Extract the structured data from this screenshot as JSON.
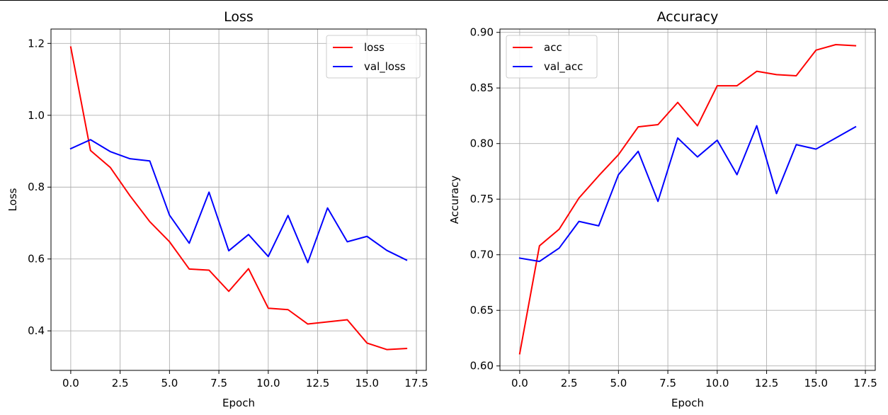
{
  "chart_data": [
    {
      "type": "line",
      "title": "Loss",
      "xlabel": "Epoch",
      "ylabel": "Loss",
      "xlim": [
        -1.0,
        18.0
      ],
      "ylim": [
        0.29,
        1.24
      ],
      "x_ticks": [
        0.0,
        2.5,
        5.0,
        7.5,
        10.0,
        12.5,
        15.0,
        17.5
      ],
      "x_tick_labels": [
        "0.0",
        "2.5",
        "5.0",
        "7.5",
        "10.0",
        "12.5",
        "15.0",
        "17.5"
      ],
      "y_ticks": [
        0.4,
        0.6,
        0.8,
        1.0,
        1.2
      ],
      "y_tick_labels": [
        "0.4",
        "0.6",
        "0.8",
        "1.0",
        "1.2"
      ],
      "grid": true,
      "legend_position": "upper right",
      "x": [
        0,
        1,
        2,
        3,
        4,
        5,
        6,
        7,
        8,
        9,
        10,
        11,
        12,
        13,
        14,
        15,
        16,
        17
      ],
      "series": [
        {
          "name": "loss",
          "color": "#ff0000",
          "values": [
            1.19,
            0.902,
            0.855,
            0.776,
            0.704,
            0.648,
            0.572,
            0.569,
            0.51,
            0.573,
            0.463,
            0.459,
            0.419,
            0.425,
            0.431,
            0.366,
            0.348,
            0.351
          ]
        },
        {
          "name": "val_loss",
          "color": "#0000ff",
          "values": [
            0.907,
            0.932,
            0.899,
            0.879,
            0.873,
            0.722,
            0.644,
            0.786,
            0.623,
            0.668,
            0.607,
            0.721,
            0.59,
            0.742,
            0.648,
            0.663,
            0.624,
            0.597
          ]
        }
      ]
    },
    {
      "type": "line",
      "title": "Accuracy",
      "xlabel": "Epoch",
      "ylabel": "Accuracy",
      "xlim": [
        -1.0,
        18.0
      ],
      "ylim": [
        0.596,
        0.903
      ],
      "x_ticks": [
        0.0,
        2.5,
        5.0,
        7.5,
        10.0,
        12.5,
        15.0,
        17.5
      ],
      "x_tick_labels": [
        "0.0",
        "2.5",
        "5.0",
        "7.5",
        "10.0",
        "12.5",
        "15.0",
        "17.5"
      ],
      "y_ticks": [
        0.6,
        0.65,
        0.7,
        0.75,
        0.8,
        0.85,
        0.9
      ],
      "y_tick_labels": [
        "0.60",
        "0.65",
        "0.70",
        "0.75",
        "0.80",
        "0.85",
        "0.90"
      ],
      "grid": true,
      "legend_position": "upper left",
      "x": [
        0,
        1,
        2,
        3,
        4,
        5,
        6,
        7,
        8,
        9,
        10,
        11,
        12,
        13,
        14,
        15,
        16,
        17
      ],
      "series": [
        {
          "name": "acc",
          "color": "#ff0000",
          "values": [
            0.611,
            0.708,
            0.723,
            0.751,
            0.771,
            0.79,
            0.815,
            0.817,
            0.837,
            0.816,
            0.852,
            0.852,
            0.865,
            0.862,
            0.861,
            0.884,
            0.889,
            0.888
          ]
        },
        {
          "name": "val_acc",
          "color": "#0000ff",
          "values": [
            0.697,
            0.694,
            0.706,
            0.73,
            0.726,
            0.772,
            0.793,
            0.748,
            0.805,
            0.788,
            0.803,
            0.772,
            0.816,
            0.755,
            0.799,
            0.795,
            0.805,
            0.815
          ]
        }
      ]
    }
  ]
}
